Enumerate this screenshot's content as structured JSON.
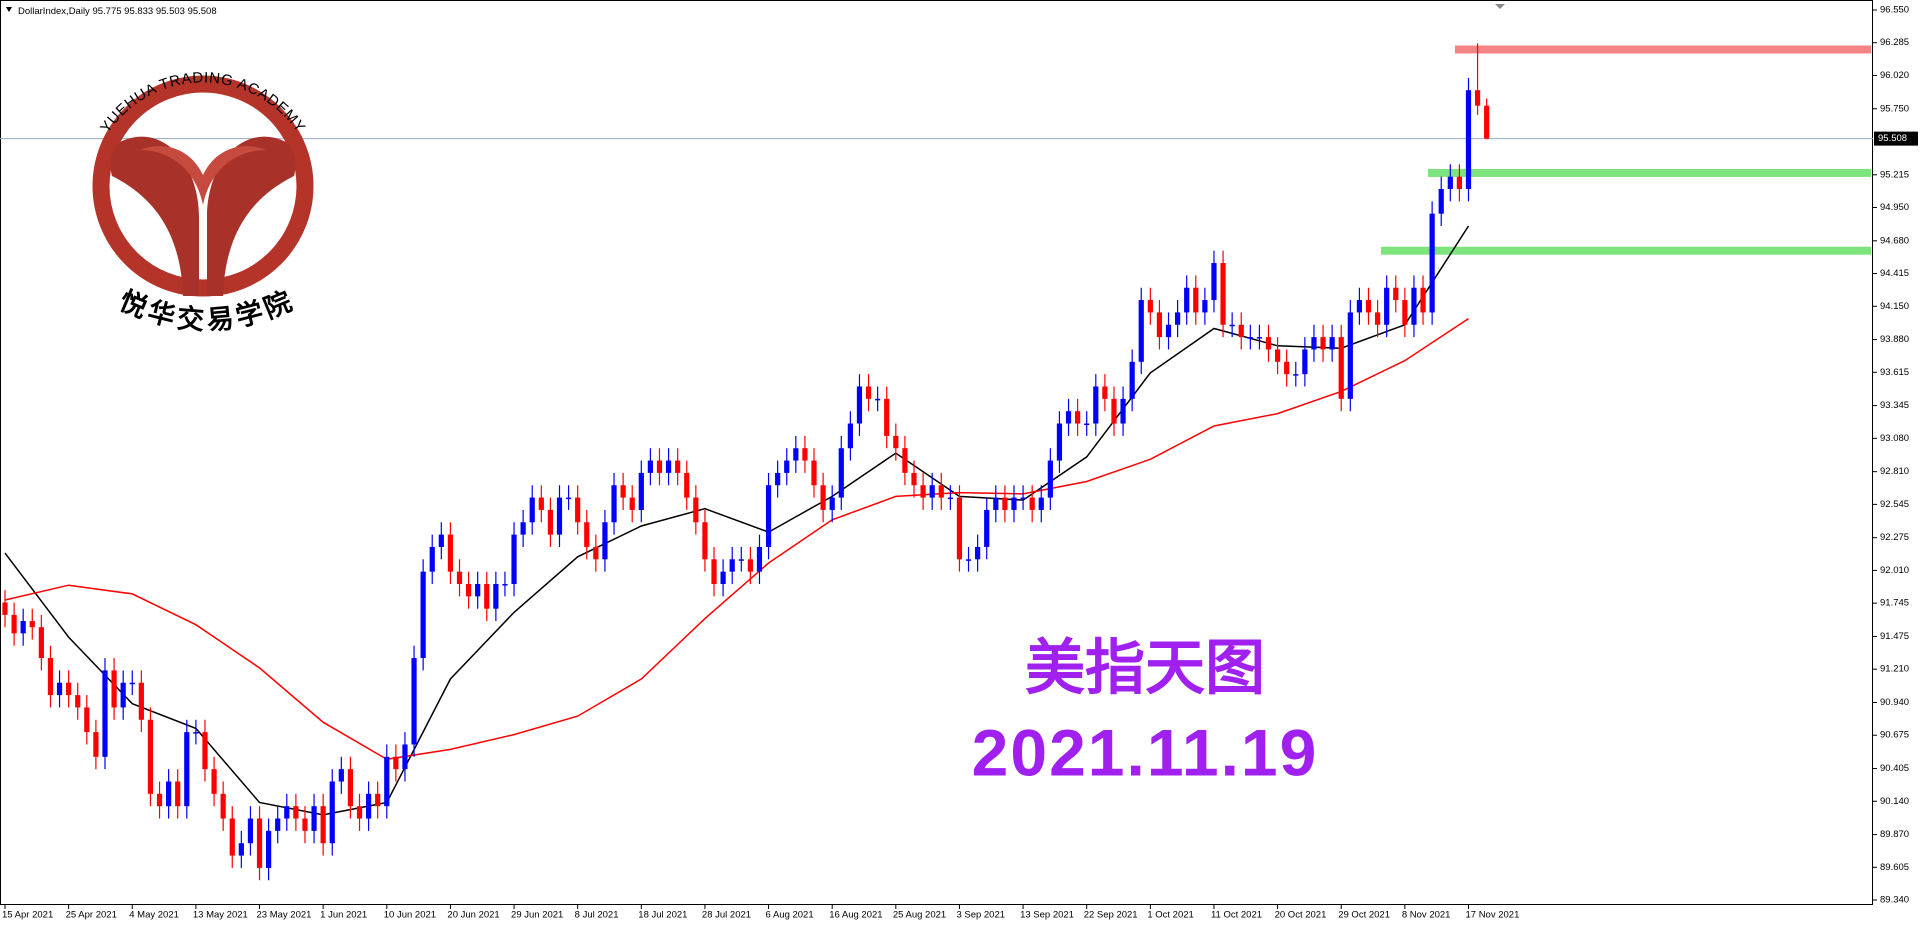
{
  "header": {
    "symbol": "DollarIndex,Daily"
  },
  "logo": {
    "top_text": "YUEHUA TRADING ACADEMY",
    "bottom_text": "悦华交易学院"
  },
  "chart_data": {
    "type": "candlestick",
    "dates": [
      "15 Apr 2021",
      "25 Apr 2021",
      "4 May 2021",
      "13 May 2021",
      "23 May 2021",
      "1 Jun 2021",
      "10 Jun 2021",
      "20 Jun 2021",
      "29 Jun 2021",
      "8 Jul 2021",
      "18 Jul 2021",
      "28 Jul 2021",
      "6 Aug 2021",
      "16 Aug 2021",
      "25 Aug 2021",
      "3 Sep 2021",
      "13 Sep 2021",
      "22 Sep 2021",
      "1 Oct 2021",
      "11 Oct 2021",
      "20 Oct 2021",
      "29 Oct 2021",
      "8 Nov 2021",
      "17 Nov 2021"
    ],
    "open": [
      91.75,
      91.65,
      91.5,
      91.6,
      91.55,
      91.3,
      91.0,
      91.1,
      91.0,
      90.9,
      90.7,
      90.5,
      91.2,
      90.9,
      91.1,
      91.1,
      90.8,
      90.2,
      90.1,
      90.3,
      90.1,
      90.7,
      90.7,
      90.4,
      90.2,
      90.0,
      89.7,
      89.8,
      90.0,
      89.6,
      89.9,
      90.0,
      90.1,
      90.0,
      89.9,
      90.1,
      89.8,
      90.3,
      90.4,
      90.1,
      90.0,
      90.2,
      90.1,
      90.5,
      90.4,
      90.6,
      91.3,
      92.0,
      92.2,
      92.3,
      92.0,
      91.9,
      91.8,
      91.9,
      91.7,
      91.9,
      91.9,
      92.3,
      92.4,
      92.6,
      92.5,
      92.3,
      92.6,
      92.6,
      92.4,
      92.2,
      92.1,
      92.4,
      92.7,
      92.6,
      92.5,
      92.8,
      92.9,
      92.8,
      92.9,
      92.8,
      92.6,
      92.4,
      92.1,
      91.9,
      92.0,
      92.1,
      92.1,
      92.0,
      92.2,
      92.7,
      92.8,
      92.9,
      93.0,
      92.9,
      92.7,
      92.5,
      92.6,
      93.0,
      93.2,
      93.5,
      93.4,
      93.4,
      93.1,
      93.0,
      92.8,
      92.7,
      92.6,
      92.7,
      92.6,
      92.6,
      92.1,
      92.1,
      92.2,
      92.5,
      92.6,
      92.5,
      92.6,
      92.6,
      92.5,
      92.6,
      92.9,
      93.2,
      93.3,
      93.2,
      93.2,
      93.5,
      93.4,
      93.2,
      93.4,
      93.7,
      94.2,
      94.1,
      93.9,
      94.0,
      94.1,
      94.3,
      94.1,
      94.2,
      94.5,
      94.0,
      94.0,
      93.9,
      93.9,
      93.9,
      93.8,
      93.7,
      93.6,
      93.6,
      93.8,
      93.9,
      93.8,
      93.9,
      93.4,
      94.1,
      94.2,
      94.1,
      94.0,
      94.3,
      94.2,
      94.0,
      94.3,
      94.1,
      94.9,
      95.1,
      95.2,
      95.1,
      95.9,
      95.775
    ],
    "high": [
      91.85,
      91.75,
      91.7,
      91.7,
      91.65,
      91.4,
      91.2,
      91.2,
      91.1,
      91.0,
      90.8,
      91.3,
      91.3,
      91.2,
      91.2,
      91.2,
      90.9,
      90.3,
      90.4,
      90.4,
      90.8,
      90.8,
      90.8,
      90.5,
      90.3,
      90.1,
      89.9,
      90.1,
      90.1,
      90.0,
      90.1,
      90.2,
      90.2,
      90.1,
      90.2,
      90.2,
      90.4,
      90.5,
      90.5,
      90.2,
      90.3,
      90.3,
      90.6,
      90.6,
      90.7,
      91.4,
      92.1,
      92.3,
      92.4,
      92.4,
      92.1,
      92.0,
      92.0,
      92.0,
      92.0,
      92.0,
      92.4,
      92.5,
      92.7,
      92.7,
      92.6,
      92.7,
      92.7,
      92.7,
      92.5,
      92.3,
      92.5,
      92.8,
      92.8,
      92.7,
      92.9,
      93.0,
      93.0,
      93.0,
      93.0,
      92.9,
      92.7,
      92.5,
      92.2,
      92.1,
      92.2,
      92.2,
      92.2,
      92.3,
      92.8,
      92.9,
      93.0,
      93.1,
      93.1,
      93.0,
      92.8,
      92.7,
      93.1,
      93.3,
      93.6,
      93.6,
      93.5,
      93.5,
      93.2,
      93.1,
      92.9,
      92.8,
      92.8,
      92.8,
      92.7,
      92.7,
      92.2,
      92.3,
      92.6,
      92.7,
      92.7,
      92.7,
      92.7,
      92.7,
      92.7,
      93.0,
      93.3,
      93.4,
      93.4,
      93.3,
      93.6,
      93.6,
      93.5,
      93.5,
      93.8,
      94.3,
      94.3,
      94.2,
      94.1,
      94.2,
      94.4,
      94.4,
      94.3,
      94.6,
      94.6,
      94.1,
      94.1,
      94.0,
      94.0,
      94.0,
      93.9,
      93.8,
      93.7,
      93.9,
      94.0,
      94.0,
      94.0,
      94.0,
      94.2,
      94.3,
      94.3,
      94.2,
      94.4,
      94.4,
      94.3,
      94.4,
      94.4,
      95.0,
      95.2,
      95.3,
      95.3,
      96.0,
      96.28,
      95.833
    ],
    "low": [
      91.55,
      91.4,
      91.4,
      91.45,
      91.2,
      90.9,
      90.9,
      90.9,
      90.8,
      90.6,
      90.4,
      90.4,
      90.8,
      90.8,
      91.0,
      90.7,
      90.1,
      90.0,
      90.0,
      90.0,
      90.0,
      90.6,
      90.3,
      90.1,
      89.9,
      89.6,
      89.6,
      89.7,
      89.5,
      89.5,
      89.8,
      89.9,
      89.9,
      89.8,
      89.8,
      89.7,
      89.7,
      90.2,
      90.0,
      89.9,
      89.9,
      90.0,
      90.0,
      90.3,
      90.3,
      90.5,
      91.2,
      91.9,
      92.1,
      91.9,
      91.8,
      91.7,
      91.7,
      91.6,
      91.6,
      91.8,
      91.8,
      92.2,
      92.3,
      92.4,
      92.2,
      92.2,
      92.5,
      92.3,
      92.1,
      92.0,
      92.0,
      92.3,
      92.5,
      92.4,
      92.4,
      92.7,
      92.7,
      92.7,
      92.7,
      92.5,
      92.3,
      92.0,
      91.8,
      91.8,
      91.9,
      92.0,
      91.9,
      91.9,
      92.1,
      92.6,
      92.7,
      92.8,
      92.8,
      92.6,
      92.4,
      92.4,
      92.5,
      92.9,
      93.1,
      93.3,
      93.3,
      93.0,
      92.9,
      92.7,
      92.6,
      92.5,
      92.5,
      92.5,
      92.5,
      92.0,
      92.0,
      92.0,
      92.1,
      92.4,
      92.4,
      92.4,
      92.5,
      92.4,
      92.4,
      92.5,
      92.8,
      93.1,
      93.1,
      93.1,
      93.1,
      93.3,
      93.1,
      93.1,
      93.3,
      93.6,
      94.0,
      93.8,
      93.8,
      93.9,
      94.0,
      94.0,
      94.0,
      94.1,
      93.9,
      93.9,
      93.8,
      93.8,
      93.8,
      93.7,
      93.6,
      93.5,
      93.5,
      93.5,
      93.7,
      93.7,
      93.7,
      93.3,
      93.3,
      94.0,
      94.0,
      93.9,
      93.9,
      94.1,
      93.9,
      93.9,
      94.0,
      94.0,
      94.8,
      95.0,
      95.0,
      95.0,
      95.7,
      95.503
    ],
    "close": [
      91.65,
      91.5,
      91.6,
      91.55,
      91.3,
      91.0,
      91.1,
      91.0,
      90.9,
      90.7,
      90.5,
      91.2,
      90.9,
      91.1,
      91.1,
      90.8,
      90.2,
      90.1,
      90.3,
      90.1,
      90.7,
      90.7,
      90.4,
      90.2,
      90.0,
      89.7,
      89.8,
      90.0,
      89.6,
      89.9,
      90.0,
      90.1,
      90.0,
      89.9,
      90.1,
      89.8,
      90.3,
      90.4,
      90.1,
      90.0,
      90.2,
      90.1,
      90.5,
      90.4,
      90.6,
      91.3,
      92.0,
      92.2,
      92.3,
      92.0,
      91.9,
      91.8,
      91.9,
      91.7,
      91.9,
      91.9,
      92.3,
      92.4,
      92.6,
      92.5,
      92.3,
      92.6,
      92.6,
      92.4,
      92.2,
      92.1,
      92.4,
      92.7,
      92.6,
      92.5,
      92.8,
      92.9,
      92.8,
      92.9,
      92.8,
      92.6,
      92.4,
      92.1,
      91.9,
      92.0,
      92.1,
      92.1,
      92.0,
      92.2,
      92.7,
      92.8,
      92.9,
      93.0,
      92.9,
      92.7,
      92.5,
      92.6,
      93.0,
      93.2,
      93.5,
      93.4,
      93.4,
      93.1,
      93.0,
      92.8,
      92.7,
      92.6,
      92.7,
      92.6,
      92.6,
      92.1,
      92.1,
      92.2,
      92.5,
      92.6,
      92.5,
      92.6,
      92.6,
      92.5,
      92.6,
      92.9,
      93.2,
      93.3,
      93.2,
      93.2,
      93.5,
      93.4,
      93.2,
      93.4,
      93.7,
      94.2,
      94.1,
      93.9,
      94.0,
      94.1,
      94.3,
      94.1,
      94.2,
      94.5,
      94.0,
      94.0,
      93.9,
      93.9,
      93.9,
      93.8,
      93.7,
      93.6,
      93.6,
      93.8,
      93.9,
      93.8,
      93.9,
      93.4,
      94.1,
      94.2,
      94.1,
      94.0,
      94.3,
      94.2,
      94.0,
      94.3,
      94.1,
      94.9,
      95.1,
      95.2,
      95.1,
      95.9,
      95.775,
      95.508
    ],
    "up_color": "#0000ff",
    "down_color": "#ff0000",
    "moving_averages": [
      {
        "color": "#000000",
        "values": [
          92.15,
          91.47,
          90.93,
          90.73,
          90.13,
          90.03,
          90.13,
          91.13,
          91.67,
          92.12,
          92.37,
          92.51,
          92.32,
          92.61,
          92.96,
          92.61,
          92.58,
          92.93,
          93.61,
          93.97,
          93.83,
          93.81,
          94.0,
          94.8
        ]
      },
      {
        "color": "#ff0000",
        "values": [
          91.77,
          91.89,
          91.82,
          91.57,
          91.22,
          90.78,
          90.48,
          90.56,
          90.68,
          90.83,
          91.13,
          91.62,
          92.07,
          92.42,
          92.61,
          92.64,
          92.63,
          92.73,
          92.91,
          93.18,
          93.28,
          93.46,
          93.71,
          94.05
        ]
      }
    ],
    "levels": [
      {
        "value": 96.23,
        "color": "#f48484"
      },
      {
        "value": 95.23,
        "color": "#7ee57e"
      },
      {
        "value": 94.6,
        "color": "#7ee57e"
      }
    ],
    "ylim": [
      89.34,
      96.55
    ],
    "yticks": [
      {
        "value": 96.55,
        "label": "96.550"
      },
      96.285,
      {
        "value": 96.02,
        "label": "96.020"
      },
      {
        "value": 95.75,
        "label": "95.750"
      },
      95.215,
      {
        "value": 94.95,
        "label": "94.950"
      },
      {
        "value": 94.68,
        "label": "94.680"
      },
      94.415,
      {
        "value": 94.15,
        "label": "94.150"
      },
      {
        "value": 93.88,
        "label": "93.880"
      },
      93.615,
      93.345,
      {
        "value": 93.08,
        "label": "93.080"
      },
      {
        "value": 92.81,
        "label": "92.810"
      },
      92.545,
      92.275,
      {
        "value": 92.01,
        "label": "92.010"
      },
      91.745,
      91.475,
      {
        "value": 91.21,
        "label": "91.210"
      },
      {
        "value": 90.94,
        "label": "90.940"
      },
      90.675,
      90.405,
      {
        "value": 90.14,
        "label": "90.140"
      },
      {
        "value": 89.87,
        "label": "89.870"
      },
      89.605,
      {
        "value": 89.34,
        "label": "89.340"
      }
    ],
    "annotations": [
      "美指天图",
      "2021.11.19"
    ]
  }
}
